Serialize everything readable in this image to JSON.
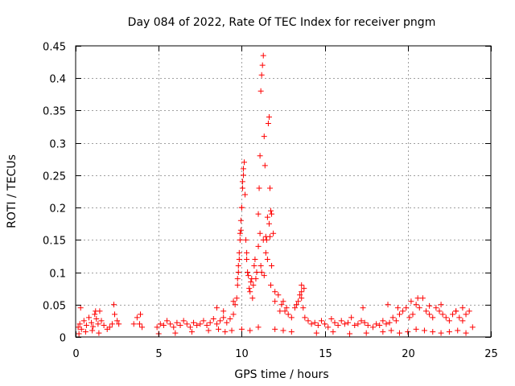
{
  "chart_data": {
    "type": "scatter",
    "title": "Day 084 of 2022, Rate Of TEC Index for receiver pngm",
    "xlabel": "GPS time / hours",
    "ylabel": "ROTI / TECUs",
    "xlim": [
      0,
      25
    ],
    "ylim": [
      0,
      0.45
    ],
    "xticks": [
      0,
      5,
      10,
      15,
      20,
      25
    ],
    "yticks": [
      0,
      0.05,
      0.1,
      0.15,
      0.2,
      0.25,
      0.3,
      0.35,
      0.4,
      0.45
    ],
    "grid": true,
    "marker": "+",
    "colors": {
      "marker": "#ff0000",
      "grid": "#a0a0a0",
      "axis": "#000000"
    },
    "series": [
      {
        "name": "ROTI",
        "x": [
          0.15,
          0.25,
          0.35,
          0.5,
          0.65,
          0.8,
          0.95,
          1.05,
          1.15,
          1.25,
          1.35,
          1.45,
          1.55,
          1.7,
          1.9,
          2.05,
          2.2,
          2.35,
          2.5,
          2.6,
          3.5,
          3.7,
          3.85,
          4.0,
          4.9,
          5.1,
          5.3,
          5.5,
          5.7,
          5.9,
          6.1,
          6.3,
          6.5,
          6.7,
          6.9,
          7.1,
          7.3,
          7.5,
          7.7,
          7.9,
          8.1,
          8.3,
          8.5,
          8.7,
          8.9,
          9.1,
          9.3,
          9.5,
          9.6,
          9.7,
          9.75,
          9.8,
          9.85,
          9.9,
          9.95,
          10.0,
          10.05,
          10.1,
          10.15,
          10.2,
          10.25,
          10.3,
          10.35,
          10.4,
          10.5,
          10.6,
          10.7,
          10.8,
          10.9,
          11.0,
          11.05,
          11.1,
          11.15,
          11.2,
          11.25,
          11.3,
          11.35,
          11.4,
          11.45,
          11.5,
          11.55,
          11.6,
          11.65,
          11.7,
          11.75,
          11.8,
          11.9,
          12.0,
          12.2,
          12.4,
          12.6,
          12.8,
          13.0,
          13.2,
          13.4,
          13.5,
          13.6,
          13.7,
          13.8,
          14.0,
          14.2,
          14.4,
          14.6,
          14.8,
          15.0,
          15.2,
          15.4,
          15.6,
          15.8,
          16.0,
          16.2,
          16.4,
          16.6,
          16.8,
          17.0,
          17.2,
          17.4,
          17.6,
          17.9,
          18.1,
          18.3,
          18.5,
          18.7,
          18.9,
          19.1,
          19.3,
          19.5,
          19.7,
          19.9,
          20.1,
          20.3,
          20.5,
          20.7,
          20.9,
          21.1,
          21.3,
          21.5,
          21.7,
          21.9,
          22.1,
          22.3,
          22.5,
          22.7,
          22.9,
          23.1,
          23.3,
          23.5,
          23.7,
          23.9,
          0.2,
          0.6,
          1.0,
          1.4,
          5.0,
          6.0,
          7.0,
          8.0,
          8.6,
          9.0,
          9.4,
          10.0,
          10.5,
          11.0,
          12.0,
          12.5,
          13.0,
          14.5,
          15.5,
          16.5,
          17.5,
          18.5,
          19.0,
          19.5,
          20.0,
          20.5,
          21.0,
          21.5,
          22.0,
          22.5,
          23.0,
          23.5,
          9.75,
          9.8,
          9.85,
          9.9,
          9.95,
          10.0,
          10.05,
          10.1,
          10.3,
          10.45,
          10.55,
          10.65,
          10.75,
          10.85,
          11.0,
          11.1,
          11.15,
          11.2,
          11.3,
          11.35,
          11.45,
          11.55,
          11.65,
          11.7,
          11.75,
          11.8,
          12.0,
          12.3,
          12.7,
          13.3,
          13.6,
          13.75,
          0.3,
          1.2,
          2.3,
          3.9,
          8.5,
          8.9,
          9.5,
          12.5,
          13.6,
          17.3,
          18.8,
          19.4,
          20.2,
          20.6,
          21.3,
          22.0,
          22.9,
          23.3
        ],
        "y": [
          0.015,
          0.02,
          0.012,
          0.025,
          0.018,
          0.03,
          0.022,
          0.016,
          0.035,
          0.028,
          0.02,
          0.04,
          0.025,
          0.018,
          0.012,
          0.015,
          0.02,
          0.035,
          0.025,
          0.02,
          0.02,
          0.03,
          0.02,
          0.015,
          0.015,
          0.02,
          0.018,
          0.025,
          0.02,
          0.015,
          0.022,
          0.018,
          0.025,
          0.02,
          0.015,
          0.022,
          0.018,
          0.02,
          0.025,
          0.018,
          0.022,
          0.028,
          0.02,
          0.025,
          0.03,
          0.022,
          0.028,
          0.035,
          0.05,
          0.06,
          0.08,
          0.1,
          0.12,
          0.16,
          0.18,
          0.2,
          0.23,
          0.26,
          0.27,
          0.22,
          0.15,
          0.13,
          0.1,
          0.095,
          0.07,
          0.09,
          0.08,
          0.12,
          0.1,
          0.14,
          0.23,
          0.28,
          0.38,
          0.405,
          0.42,
          0.435,
          0.31,
          0.265,
          0.155,
          0.15,
          0.12,
          0.33,
          0.34,
          0.23,
          0.195,
          0.19,
          0.16,
          0.07,
          0.065,
          0.05,
          0.04,
          0.035,
          0.03,
          0.045,
          0.055,
          0.065,
          0.08,
          0.045,
          0.03,
          0.025,
          0.02,
          0.022,
          0.018,
          0.025,
          0.02,
          0.015,
          0.028,
          0.022,
          0.018,
          0.025,
          0.02,
          0.022,
          0.03,
          0.018,
          0.02,
          0.025,
          0.022,
          0.018,
          0.015,
          0.02,
          0.018,
          0.025,
          0.02,
          0.022,
          0.03,
          0.025,
          0.035,
          0.04,
          0.045,
          0.03,
          0.035,
          0.05,
          0.045,
          0.06,
          0.04,
          0.035,
          0.03,
          0.045,
          0.04,
          0.035,
          0.03,
          0.025,
          0.035,
          0.04,
          0.03,
          0.025,
          0.035,
          0.04,
          0.015,
          0.005,
          0.008,
          0.01,
          0.006,
          0.005,
          0.006,
          0.008,
          0.01,
          0.012,
          0.008,
          0.01,
          0.012,
          0.01,
          0.015,
          0.012,
          0.01,
          0.008,
          0.006,
          0.008,
          0.005,
          0.006,
          0.008,
          0.01,
          0.006,
          0.008,
          0.012,
          0.01,
          0.008,
          0.006,
          0.008,
          0.01,
          0.006,
          0.09,
          0.11,
          0.13,
          0.15,
          0.165,
          0.2,
          0.24,
          0.25,
          0.12,
          0.075,
          0.085,
          0.06,
          0.11,
          0.09,
          0.19,
          0.16,
          0.11,
          0.1,
          0.15,
          0.095,
          0.13,
          0.185,
          0.175,
          0.155,
          0.08,
          0.11,
          0.055,
          0.04,
          0.045,
          0.05,
          0.07,
          0.075,
          0.045,
          0.04,
          0.05,
          0.035,
          0.045,
          0.04,
          0.055,
          0.055,
          0.06,
          0.045,
          0.05,
          0.045,
          0.055,
          0.06,
          0.048,
          0.05,
          0.04,
          0.045
        ]
      }
    ]
  }
}
